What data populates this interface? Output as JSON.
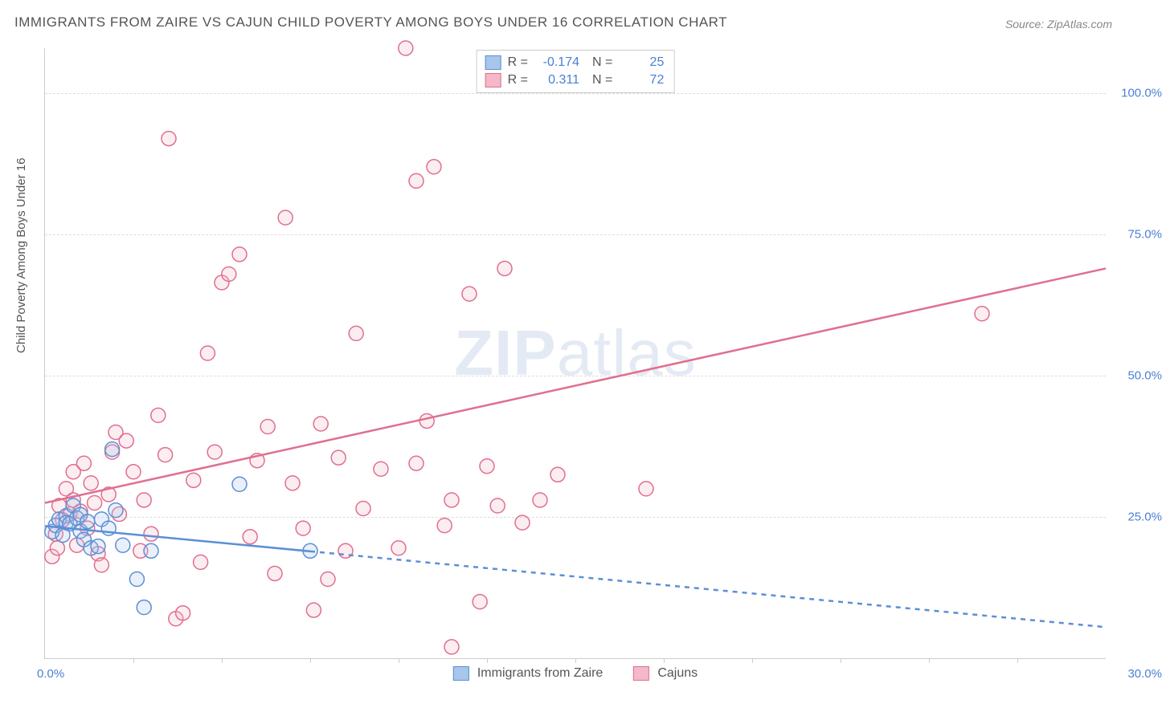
{
  "title": "IMMIGRANTS FROM ZAIRE VS CAJUN CHILD POVERTY AMONG BOYS UNDER 16 CORRELATION CHART",
  "source_label": "Source: ZipAtlas.com",
  "ylabel": "Child Poverty Among Boys Under 16",
  "watermark_bold": "ZIP",
  "watermark_rest": "atlas",
  "chart": {
    "type": "scatter",
    "background_color": "#ffffff",
    "grid_color": "#dddddd",
    "axis_color": "#cccccc",
    "tick_color": "#4a7fd4",
    "label_color": "#555555",
    "title_fontsize": 17,
    "tick_fontsize": 15,
    "label_fontsize": 15,
    "xlim": [
      0,
      30
    ],
    "ylim": [
      0,
      108
    ],
    "x_tick_start": "0.0%",
    "x_tick_end": "30.0%",
    "x_minor_ticks": [
      2.5,
      5,
      7.5,
      10,
      12.5,
      15,
      17.5,
      20,
      22.5,
      25,
      27.5
    ],
    "y_ticks": [
      {
        "v": 25,
        "label": "25.0%"
      },
      {
        "v": 50,
        "label": "50.0%"
      },
      {
        "v": 75,
        "label": "75.0%"
      },
      {
        "v": 100,
        "label": "100.0%"
      }
    ],
    "marker_radius": 9,
    "marker_stroke_width": 1.5,
    "marker_fill_opacity": 0.25,
    "line_width": 2.5,
    "series": [
      {
        "name": "Immigrants from Zaire",
        "color_stroke": "#5b8fd6",
        "color_fill": "#a8c5ea",
        "R": "-0.174",
        "N": "25",
        "trend": {
          "x1": 0,
          "y1": 23.4,
          "x2": 30,
          "y2": 5.5,
          "solid_until_x": 7.5
        },
        "points": [
          [
            0.2,
            22.4
          ],
          [
            0.3,
            23.5
          ],
          [
            0.4,
            24.6
          ],
          [
            0.5,
            21.8
          ],
          [
            0.6,
            25.2
          ],
          [
            0.6,
            24.0
          ],
          [
            0.7,
            23.8
          ],
          [
            0.8,
            27.0
          ],
          [
            0.9,
            24.8
          ],
          [
            1.0,
            25.4
          ],
          [
            1.0,
            22.5
          ],
          [
            1.1,
            21.0
          ],
          [
            1.2,
            24.2
          ],
          [
            1.3,
            19.5
          ],
          [
            1.5,
            19.8
          ],
          [
            1.6,
            24.6
          ],
          [
            1.8,
            23.0
          ],
          [
            1.9,
            37.0
          ],
          [
            2.0,
            26.2
          ],
          [
            2.2,
            20.0
          ],
          [
            2.6,
            14.0
          ],
          [
            2.8,
            9.0
          ],
          [
            3.0,
            19.0
          ],
          [
            5.5,
            30.8
          ],
          [
            7.5,
            19.0
          ]
        ]
      },
      {
        "name": "Cajuns",
        "color_stroke": "#e06f8e",
        "color_fill": "#f4b8c8",
        "R": "0.311",
        "N": "72",
        "trend": {
          "x1": 0,
          "y1": 27.5,
          "x2": 30,
          "y2": 69.0,
          "solid_until_x": 30
        },
        "points": [
          [
            0.2,
            18.0
          ],
          [
            0.3,
            22.0
          ],
          [
            0.4,
            27.0
          ],
          [
            0.5,
            24.5
          ],
          [
            0.6,
            30.0
          ],
          [
            0.7,
            25.5
          ],
          [
            0.8,
            33.0
          ],
          [
            0.8,
            28.0
          ],
          [
            0.9,
            20.0
          ],
          [
            1.0,
            26.0
          ],
          [
            1.1,
            34.5
          ],
          [
            1.2,
            23.0
          ],
          [
            1.3,
            31.0
          ],
          [
            1.5,
            18.5
          ],
          [
            1.6,
            16.5
          ],
          [
            1.8,
            29.0
          ],
          [
            1.9,
            36.5
          ],
          [
            2.0,
            40.0
          ],
          [
            2.1,
            25.5
          ],
          [
            2.3,
            38.5
          ],
          [
            2.5,
            33.0
          ],
          [
            2.7,
            19.0
          ],
          [
            2.8,
            28.0
          ],
          [
            3.0,
            22.0
          ],
          [
            3.2,
            43.0
          ],
          [
            3.4,
            36.0
          ],
          [
            3.5,
            92.0
          ],
          [
            3.7,
            7.0
          ],
          [
            3.9,
            8.0
          ],
          [
            4.2,
            31.5
          ],
          [
            4.4,
            17.0
          ],
          [
            4.6,
            54.0
          ],
          [
            4.8,
            36.5
          ],
          [
            5.0,
            66.5
          ],
          [
            5.2,
            68.0
          ],
          [
            5.5,
            71.5
          ],
          [
            5.8,
            21.5
          ],
          [
            6.0,
            35.0
          ],
          [
            6.3,
            41.0
          ],
          [
            6.5,
            15.0
          ],
          [
            6.8,
            78.0
          ],
          [
            7.0,
            31.0
          ],
          [
            7.3,
            23.0
          ],
          [
            7.6,
            8.5
          ],
          [
            7.8,
            41.5
          ],
          [
            8.0,
            14.0
          ],
          [
            8.3,
            35.5
          ],
          [
            8.5,
            19.0
          ],
          [
            8.8,
            57.5
          ],
          [
            9.0,
            26.5
          ],
          [
            9.5,
            33.5
          ],
          [
            10.0,
            19.5
          ],
          [
            10.2,
            108.0
          ],
          [
            10.5,
            34.5
          ],
          [
            10.5,
            84.5
          ],
          [
            10.8,
            42.0
          ],
          [
            11.0,
            87.0
          ],
          [
            11.3,
            23.5
          ],
          [
            11.5,
            28.0
          ],
          [
            11.5,
            2.0
          ],
          [
            12.0,
            64.5
          ],
          [
            12.3,
            10.0
          ],
          [
            12.5,
            34.0
          ],
          [
            12.8,
            27.0
          ],
          [
            13.0,
            69.0
          ],
          [
            13.5,
            24.0
          ],
          [
            14.0,
            28.0
          ],
          [
            14.5,
            32.5
          ],
          [
            17.0,
            30.0
          ],
          [
            26.5,
            61.0
          ],
          [
            1.4,
            27.5
          ],
          [
            0.35,
            19.5
          ]
        ]
      }
    ]
  },
  "legend_top_layout": {
    "R_label": "R =",
    "N_label": "N ="
  },
  "legend_bottom": [
    {
      "swatch_fill": "#a8c5ea",
      "swatch_stroke": "#5b8fd6",
      "label": "Immigrants from Zaire"
    },
    {
      "swatch_fill": "#f4b8c8",
      "swatch_stroke": "#e06f8e",
      "label": "Cajuns"
    }
  ]
}
